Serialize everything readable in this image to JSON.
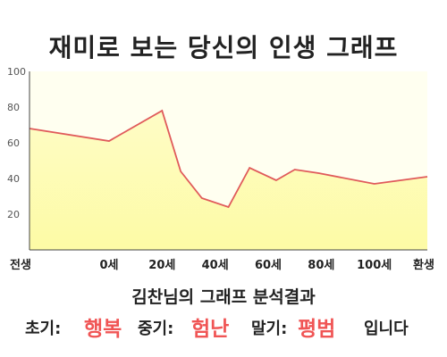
{
  "title": "재미로 보는 당신의 인생 그래프",
  "chart_data": {
    "type": "area",
    "x_ticks": [
      "전생",
      "0세",
      "20세",
      "40세",
      "60세",
      "80세",
      "100세",
      "환생"
    ],
    "y_ticks": [
      "20",
      "40",
      "60",
      "80",
      "100"
    ],
    "ylim": [
      0,
      100
    ],
    "grid": false,
    "x": [
      -30,
      0,
      20,
      27,
      35,
      45,
      53,
      63,
      70,
      79,
      100,
      120
    ],
    "values": [
      68,
      61,
      78,
      44,
      29,
      24,
      46,
      39,
      45,
      43,
      37,
      41
    ],
    "colors": {
      "line": "#e05a5a",
      "fill_top": "#fefcc6",
      "fill_bottom": "#fdfba5",
      "plot_bg": "#fffff0"
    }
  },
  "analysis_label": "김찬님의 그래프 분석결과",
  "summary": {
    "early_label": "초기:",
    "early_value": "행복",
    "middle_label": "중기:",
    "middle_value": "험난",
    "late_label": "말기:",
    "late_value": "평범",
    "ending": "입니다",
    "highlight_color": "#f05555"
  }
}
